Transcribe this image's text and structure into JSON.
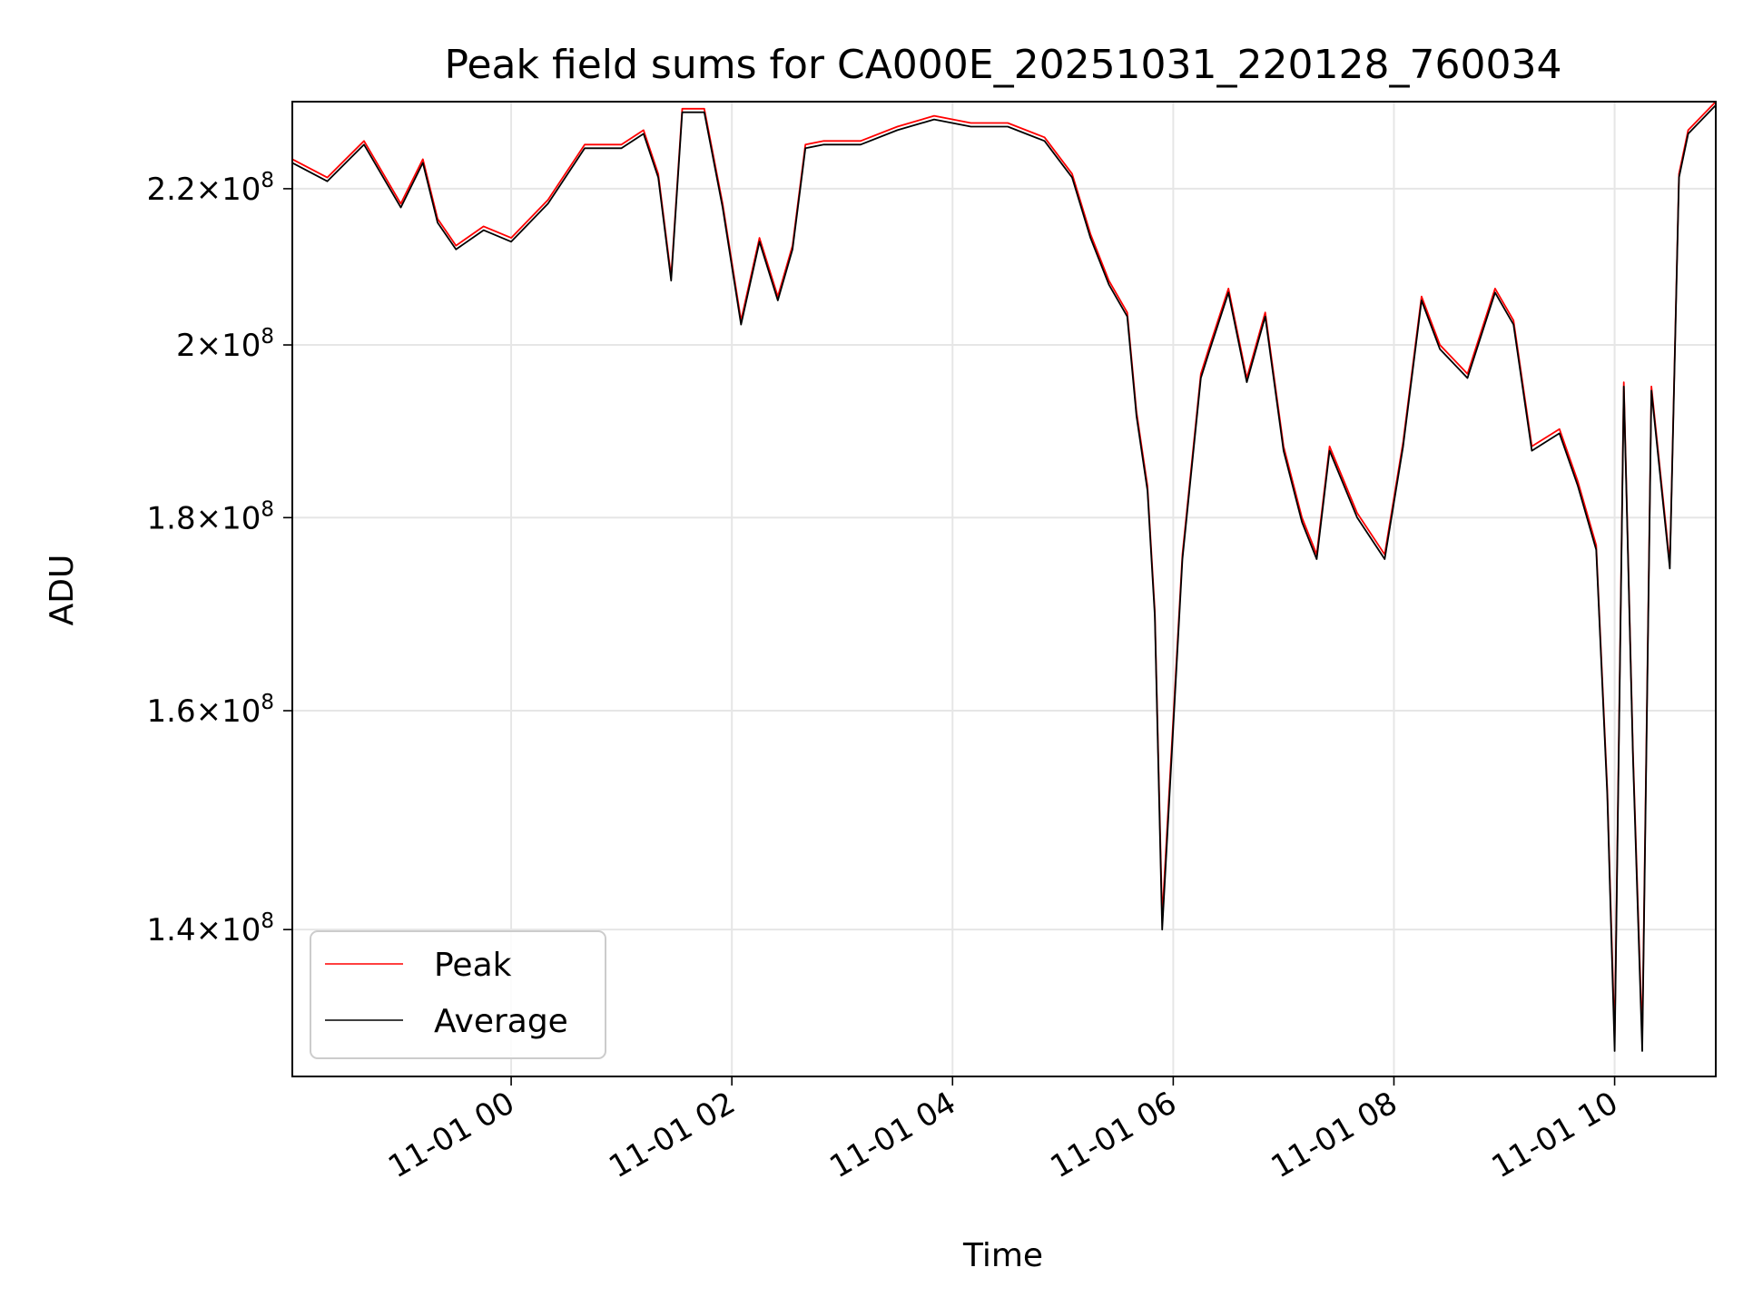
{
  "chart_data": {
    "type": "line",
    "title": "Peak field sums for CA000E_20251031_220128_760034",
    "xlabel": "Time",
    "ylabel": "ADU",
    "y_scale": "log",
    "ylim": [
      128000000,
      232000000
    ],
    "xlim": [
      "2025-10-31 22:01",
      "2025-11-01 10:55"
    ],
    "grid": true,
    "legend_position": "lower-left",
    "x_ticks": [
      {
        "label": "11-01 00",
        "time": "2025-11-01 00:00"
      },
      {
        "label": "11-01 02",
        "time": "2025-11-01 02:00"
      },
      {
        "label": "11-01 04",
        "time": "2025-11-01 04:00"
      },
      {
        "label": "11-01 06",
        "time": "2025-11-01 06:00"
      },
      {
        "label": "11-01 08",
        "time": "2025-11-01 08:00"
      },
      {
        "label": "11-01 10",
        "time": "2025-11-01 10:00"
      }
    ],
    "y_ticks": [
      {
        "mantissa": "1.4",
        "value": 140000000
      },
      {
        "mantissa": "1.6",
        "value": 160000000
      },
      {
        "mantissa": "1.8",
        "value": 180000000
      },
      {
        "mantissa": "2",
        "value": 200000000
      },
      {
        "mantissa": "2.2",
        "value": 220000000
      }
    ],
    "x": [
      "2025-10-31 22:01",
      "2025-10-31 22:20",
      "2025-10-31 22:40",
      "2025-10-31 23:00",
      "2025-10-31 23:12",
      "2025-10-31 23:20",
      "2025-10-31 23:30",
      "2025-10-31 23:45",
      "2025-11-01 00:00",
      "2025-11-01 00:20",
      "2025-11-01 00:40",
      "2025-11-01 01:00",
      "2025-11-01 01:12",
      "2025-11-01 01:20",
      "2025-11-01 01:27",
      "2025-11-01 01:33",
      "2025-11-01 01:45",
      "2025-11-01 01:55",
      "2025-11-01 02:05",
      "2025-11-01 02:15",
      "2025-11-01 02:25",
      "2025-11-01 02:33",
      "2025-11-01 02:40",
      "2025-11-01 02:50",
      "2025-11-01 03:10",
      "2025-11-01 03:30",
      "2025-11-01 03:50",
      "2025-11-01 04:10",
      "2025-11-01 04:30",
      "2025-11-01 04:50",
      "2025-11-01 05:05",
      "2025-11-01 05:15",
      "2025-11-01 05:25",
      "2025-11-01 05:35",
      "2025-11-01 05:40",
      "2025-11-01 05:46",
      "2025-11-01 05:50",
      "2025-11-01 05:54",
      "2025-11-01 06:05",
      "2025-11-01 06:15",
      "2025-11-01 06:20",
      "2025-11-01 06:30",
      "2025-11-01 06:40",
      "2025-11-01 06:50",
      "2025-11-01 07:00",
      "2025-11-01 07:10",
      "2025-11-01 07:18",
      "2025-11-01 07:25",
      "2025-11-01 07:40",
      "2025-11-01 07:55",
      "2025-11-01 08:05",
      "2025-11-01 08:15",
      "2025-11-01 08:25",
      "2025-11-01 08:40",
      "2025-11-01 08:55",
      "2025-11-01 09:05",
      "2025-11-01 09:15",
      "2025-11-01 09:30",
      "2025-11-01 09:40",
      "2025-11-01 09:50",
      "2025-11-01 09:56",
      "2025-11-01 10:00",
      "2025-11-01 10:05",
      "2025-11-01 10:10",
      "2025-11-01 10:15",
      "2025-11-01 10:20",
      "2025-11-01 10:30",
      "2025-11-01 10:35",
      "2025-11-01 10:40",
      "2025-11-01 10:55"
    ],
    "series": [
      {
        "name": "Peak",
        "color": "#ff0000",
        "values": [
          224000000,
          221500000,
          226500000,
          218000000,
          224000000,
          216000000,
          212500000,
          215000000,
          213500000,
          218500000,
          226000000,
          226000000,
          228000000,
          222000000,
          208500000,
          231000000,
          231000000,
          218000000,
          203000000,
          213500000,
          206000000,
          212500000,
          226000000,
          226500000,
          226500000,
          228500000,
          230000000,
          229000000,
          229000000,
          227000000,
          222000000,
          214000000,
          208000000,
          204000000,
          192000000,
          183500000,
          170000000,
          141000000,
          176000000,
          196500000,
          200000000,
          207000000,
          196000000,
          204000000,
          188000000,
          180000000,
          176000000,
          188000000,
          180500000,
          176000000,
          188500000,
          206000000,
          200000000,
          196500000,
          207000000,
          203000000,
          188000000,
          190000000,
          184000000,
          177000000,
          152500000,
          131000000,
          195500000,
          156000000,
          131000000,
          195000000,
          175000000,
          222000000,
          228000000,
          232000000
        ]
      },
      {
        "name": "Average",
        "color": "#000000",
        "values": [
          223500000,
          221000000,
          226000000,
          217500000,
          223500000,
          215500000,
          212000000,
          214500000,
          213000000,
          218000000,
          225500000,
          225500000,
          227500000,
          221500000,
          208000000,
          230500000,
          230500000,
          217500000,
          202500000,
          213000000,
          205500000,
          212000000,
          225500000,
          226000000,
          226000000,
          228000000,
          229500000,
          228500000,
          228500000,
          226500000,
          221500000,
          213500000,
          207500000,
          203500000,
          191500000,
          183000000,
          169500000,
          140000000,
          175500000,
          196000000,
          199500000,
          206500000,
          195500000,
          203500000,
          187500000,
          179500000,
          175500000,
          187500000,
          180000000,
          175500000,
          188000000,
          205500000,
          199500000,
          196000000,
          206500000,
          202500000,
          187500000,
          189500000,
          183500000,
          176500000,
          152000000,
          130000000,
          195000000,
          155500000,
          130000000,
          194500000,
          174500000,
          221500000,
          227500000,
          231500000
        ]
      }
    ]
  }
}
